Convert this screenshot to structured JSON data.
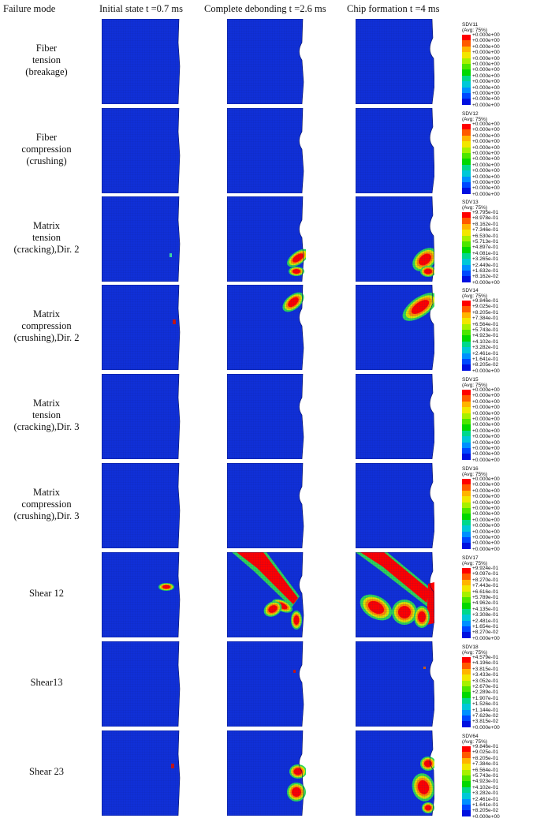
{
  "headers": {
    "mode": "Failure mode",
    "col1": "Initial state t =0.7 ms",
    "col2": "Complete debonding t =2.6 ms",
    "col3": "Chip formation t =4 ms"
  },
  "legend_colors": [
    "#ff0000",
    "#ff5a00",
    "#ffb400",
    "#f2e600",
    "#a6f000",
    "#4ce600",
    "#00d800",
    "#00d88c",
    "#00c8d8",
    "#0090ff",
    "#0048ff",
    "#0010e0"
  ],
  "rows": [
    {
      "label": [
        "Fiber",
        "tension",
        "(breakage)"
      ],
      "legend": {
        "title": "SDV11",
        "avg": "(Avg: 75%)",
        "values": [
          "+0.000e+00",
          "+0.000e+00",
          "+0.000e+00",
          "+0.000e+00",
          "+0.000e+00",
          "+0.000e+00",
          "+0.000e+00",
          "+0.000e+00",
          "+0.000e+00",
          "+0.000e+00",
          "+0.000e+00",
          "+0.000e+00",
          "+0.000e+00"
        ]
      }
    },
    {
      "label": [
        "Fiber",
        "compression",
        "(crushing)"
      ],
      "legend": {
        "title": "SDV12",
        "avg": "(Avg: 75%)",
        "values": [
          "+0.000e+00",
          "+0.000e+00",
          "+0.000e+00",
          "+0.000e+00",
          "+0.000e+00",
          "+0.000e+00",
          "+0.000e+00",
          "+0.000e+00",
          "+0.000e+00",
          "+0.000e+00",
          "+0.000e+00",
          "+0.000e+00",
          "+0.000e+00"
        ]
      }
    },
    {
      "label": [
        "Matrix",
        "tension",
        "(cracking),Dir. 2"
      ],
      "legend": {
        "title": "SDV13",
        "avg": "(Avg: 75%)",
        "values": [
          "+9.795e-01",
          "+8.978e-01",
          "+8.162e-01",
          "+7.346e-01",
          "+6.530e-01",
          "+5.713e-01",
          "+4.897e-01",
          "+4.081e-01",
          "+3.265e-01",
          "+2.449e-01",
          "+1.632e-01",
          "+8.162e-02",
          "+0.000e+00"
        ]
      }
    },
    {
      "label": [
        "Matrix",
        "compression",
        "(crushing),Dir. 2"
      ],
      "legend": {
        "title": "SDV14",
        "avg": "(Avg: 75%)",
        "values": [
          "+9.846e-01",
          "+9.025e-01",
          "+8.205e-01",
          "+7.384e-01",
          "+6.564e-01",
          "+5.743e-01",
          "+4.923e-01",
          "+4.102e-01",
          "+3.282e-01",
          "+2.461e-01",
          "+1.641e-01",
          "+8.205e-02",
          "+0.000e+00"
        ]
      }
    },
    {
      "label": [
        "Matrix",
        "tension",
        "(cracking),Dir. 3"
      ],
      "legend": {
        "title": "SDV15",
        "avg": "(Avg: 75%)",
        "values": [
          "+0.000e+00",
          "+0.000e+00",
          "+0.000e+00",
          "+0.000e+00",
          "+0.000e+00",
          "+0.000e+00",
          "+0.000e+00",
          "+0.000e+00",
          "+0.000e+00",
          "+0.000e+00",
          "+0.000e+00",
          "+0.000e+00",
          "+0.000e+00"
        ]
      }
    },
    {
      "label": [
        "Matrix",
        "compression",
        "(crushing),Dir. 3"
      ],
      "legend": {
        "title": "SDV16",
        "avg": "(Avg: 75%)",
        "values": [
          "+0.000e+00",
          "+0.000e+00",
          "+0.000e+00",
          "+0.000e+00",
          "+0.000e+00",
          "+0.000e+00",
          "+0.000e+00",
          "+0.000e+00",
          "+0.000e+00",
          "+0.000e+00",
          "+0.000e+00",
          "+0.000e+00",
          "+0.000e+00"
        ]
      }
    },
    {
      "label": [
        "Shear 12"
      ],
      "legend": {
        "title": "SDV17",
        "avg": "(Avg: 75%)",
        "values": [
          "+9.924e-01",
          "+9.097e-01",
          "+8.270e-01",
          "+7.443e-01",
          "+6.616e-01",
          "+5.789e-01",
          "+4.962e-01",
          "+4.135e-01",
          "+3.308e-01",
          "+2.481e-01",
          "+1.654e-01",
          "+8.270e-02",
          "+0.000e+00"
        ]
      }
    },
    {
      "label": [
        "Shear13"
      ],
      "legend": {
        "title": "SDV18",
        "avg": "(Avg: 75%)",
        "values": [
          "+4.579e-01",
          "+4.196e-01",
          "+3.815e-01",
          "+3.433e-01",
          "+3.052e-01",
          "+2.670e-01",
          "+2.289e-01",
          "+1.907e-01",
          "+1.526e-01",
          "+1.144e-01",
          "+7.629e-02",
          "+3.815e-02",
          "+0.000e+00"
        ]
      }
    },
    {
      "label": [
        "Shear 23"
      ],
      "legend": {
        "title": "SDV64",
        "avg": "(Avg: 75%)",
        "values": [
          "+9.846e-01",
          "+9.025e-01",
          "+8.205e-01",
          "+7.384e-01",
          "+6.564e-01",
          "+5.743e-01",
          "+4.923e-01",
          "+4.102e-01",
          "+3.282e-01",
          "+2.461e-01",
          "+1.641e-01",
          "+8.205e-02",
          "+0.000e+00"
        ]
      }
    }
  ]
}
